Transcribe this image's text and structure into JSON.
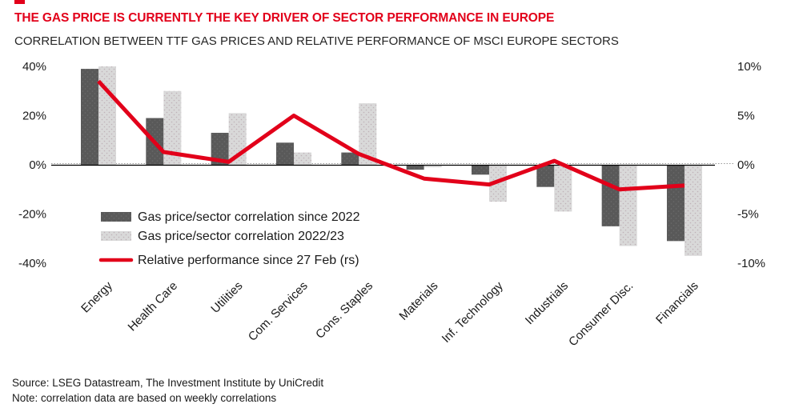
{
  "header": {
    "title": "THE GAS PRICE IS CURRENTLY THE KEY DRIVER OF SECTOR PERFORMANCE IN EUROPE",
    "subtitle": "CORRELATION BETWEEN TTF GAS PRICES AND RELATIVE PERFORMANCE OF MSCI EUROPE SECTORS"
  },
  "footer": {
    "source": "Source: LSEG Datastream, The Investment Institute by UniCredit",
    "note": "Note: correlation data are based on weekly correlations"
  },
  "colors": {
    "brand_red": "#e2001a",
    "dark_bar": "#595959",
    "dark_bar_dot": "#6b6b6b",
    "light_bar": "#d9d9d9",
    "light_bar_dot": "#bfb2b8",
    "axis_line": "#000000",
    "zero_dotted": "#9a9a9a",
    "text": "#1a1a1a"
  },
  "chart_data": {
    "type": "bar",
    "subtype": "grouped bars with overlaid line (dual axis)",
    "categories": [
      "Energy",
      "Health Care",
      "Utilities",
      "Com. Services",
      "Cons. Staples",
      "Materials",
      "Inf. Technology",
      "Industrials",
      "Consumer Disc.",
      "Financials"
    ],
    "series": [
      {
        "name": "Gas price/sector correlation since 2022",
        "type": "bar",
        "axis": "left",
        "color": "#595959",
        "values": [
          39,
          19,
          13,
          9,
          5,
          -2,
          -4,
          -9,
          -25,
          -31
        ]
      },
      {
        "name": "Gas price/sector correlation 2022/23",
        "type": "bar",
        "axis": "left",
        "color": "#d9d9d9",
        "values": [
          40,
          30,
          21,
          5,
          25,
          -1,
          -15,
          -19,
          -33,
          -37
        ]
      },
      {
        "name": "Relative performance since 27 Feb (rs)",
        "type": "line",
        "axis": "right",
        "color": "#e2001a",
        "values": [
          8.5,
          1.3,
          0.3,
          5.0,
          1.1,
          -1.4,
          -2.0,
          0.4,
          -2.5,
          -2.1
        ]
      }
    ],
    "left_axis": {
      "unit": "%",
      "min": -40,
      "max": 40,
      "tick_labels": [
        "40%",
        "20%",
        "0%",
        "-20%",
        "-40%"
      ],
      "tick_values": [
        40,
        20,
        0,
        -20,
        -40
      ]
    },
    "right_axis": {
      "unit": "%",
      "min": -10,
      "max": 10,
      "tick_labels": [
        "10%",
        "5%",
        "0%",
        "-5%",
        "-10%"
      ],
      "tick_values": [
        10,
        5,
        0,
        -5,
        -10
      ]
    },
    "grid": "zero-line-only",
    "legend_position": "inside-center-left",
    "x_label_rotation_deg": -45
  }
}
